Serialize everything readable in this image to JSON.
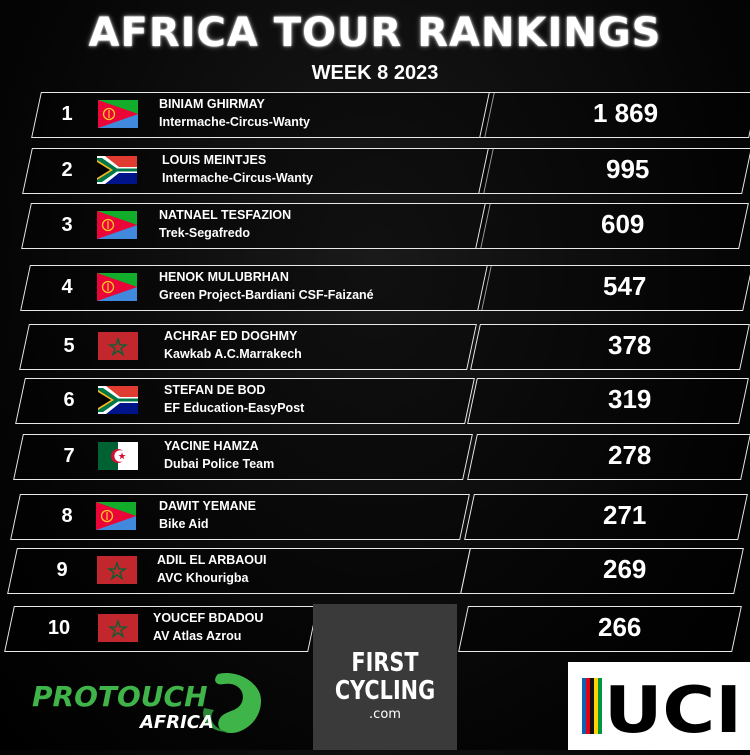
{
  "header": {
    "title": "AFRICA TOUR RANKINGS",
    "subtitle": "WEEK 8 2023"
  },
  "rankings": [
    {
      "rank": "1",
      "flag": "eritrea-flag",
      "name": "BINIAM GHIRMAY",
      "team": "Intermache-Circus-Wanty",
      "points": "1 869"
    },
    {
      "rank": "2",
      "flag": "south-africa-flag",
      "name": "LOUIS MEINTJES",
      "team": "Intermache-Circus-Wanty",
      "points": "995"
    },
    {
      "rank": "3",
      "flag": "eritrea-flag",
      "name": "NATNAEL TESFAZION",
      "team": "Trek-Segafredo",
      "points": "609"
    },
    {
      "rank": "4",
      "flag": "eritrea-flag",
      "name": "HENOK MULUBRHAN",
      "team": "Green Project-Bardiani CSF-Faizané",
      "points": "547"
    },
    {
      "rank": "5",
      "flag": "morocco-flag",
      "name": "ACHRAF ED DOGHMY",
      "team": "Kawkab A.C.Marrakech",
      "points": "378"
    },
    {
      "rank": "6",
      "flag": "south-africa-flag",
      "name": "STEFAN DE BOD",
      "team": "EF Education-EasyPost",
      "points": "319"
    },
    {
      "rank": "7",
      "flag": "algeria-flag",
      "name": "YACINE HAMZA",
      "team": "Dubai Police Team",
      "points": "278"
    },
    {
      "rank": "8",
      "flag": "eritrea-flag",
      "name": "DAWIT YEMANE",
      "team": "Bike Aid",
      "points": "271"
    },
    {
      "rank": "9",
      "flag": "morocco-flag",
      "name": "ADIL EL ARBAOUI",
      "team": "AVC Khourigba",
      "points": "269"
    },
    {
      "rank": "10",
      "flag": "morocco-flag",
      "name": "YOUCEF BDADOU",
      "team": "AV Atlas Azrou",
      "points": "266"
    }
  ],
  "sponsors": {
    "protouch": {
      "line1": "PROTOUCH",
      "line2": "AFRICA"
    },
    "firstcycling": {
      "line1": "FIRST",
      "line2": "CYCLING",
      "line3": ".com"
    },
    "uci": {
      "text": "UCI"
    }
  },
  "colors": {
    "eritrea_green": "#12ad2b",
    "eritrea_red": "#ea0437",
    "eritrea_blue": "#4189dd",
    "morocco_red": "#c1272d",
    "morocco_green": "#006233",
    "protouch_green": "#3fb449"
  }
}
